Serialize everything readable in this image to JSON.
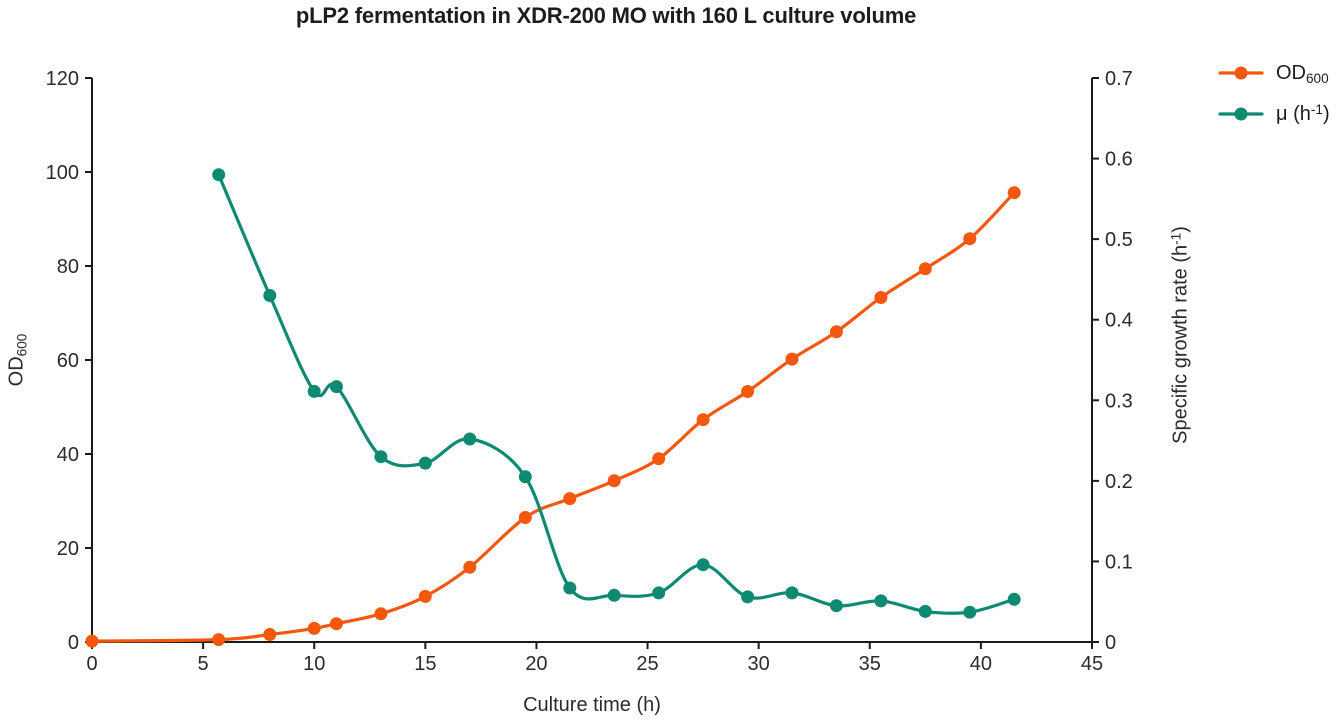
{
  "chart_data": {
    "type": "line",
    "title": "pLP2 fermentation in XDR-200 MO with 160 L culture volume",
    "xlabel": "Culture time (h)",
    "ylabel_left": {
      "main": "OD",
      "sub": "600"
    },
    "ylabel_right": {
      "main": "Specific growth rate (h",
      "sup": "-1",
      "post": ")"
    },
    "xlim": [
      0,
      45
    ],
    "ylim_left": [
      0,
      120
    ],
    "ylim_right": [
      0,
      0.7
    ],
    "xticks": [
      0,
      5,
      10,
      15,
      20,
      25,
      30,
      35,
      40,
      45
    ],
    "yticks_left": [
      0,
      20,
      40,
      60,
      80,
      100,
      120
    ],
    "yticks_right": [
      0,
      0.1,
      0.2,
      0.3,
      0.4,
      0.5,
      0.6,
      0.7
    ],
    "grid": false,
    "legend_position": "top-right-outside",
    "series": [
      {
        "id": "od600",
        "name": "OD600",
        "axis": "left",
        "color": "#f4580e",
        "x": [
          0,
          5.7,
          8,
          10,
          11,
          13,
          15,
          17,
          19.5,
          21.5,
          23.5,
          25.5,
          27.5,
          29.5,
          31.5,
          33.5,
          35.5,
          37.5,
          39.5,
          41.5
        ],
        "y": [
          0.2,
          0.5,
          1.6,
          2.9,
          3.9,
          6.0,
          9.7,
          15.9,
          26.5,
          30.5,
          34.3,
          39.0,
          47.3,
          53.3,
          60.2,
          66.0,
          73.3,
          79.4,
          85.8,
          95.6
        ]
      },
      {
        "id": "mu",
        "name": "mu (h-1)",
        "axis": "right",
        "color": "#0e8a73",
        "x": [
          5.7,
          8,
          10,
          11,
          13,
          15,
          17,
          19.5,
          21.5,
          23.5,
          25.5,
          27.5,
          29.5,
          31.5,
          33.5,
          35.5,
          37.5,
          39.5,
          41.5
        ],
        "y": [
          0.58,
          0.43,
          0.311,
          0.317,
          0.23,
          0.222,
          0.252,
          0.205,
          0.067,
          0.058,
          0.061,
          0.096,
          0.056,
          0.061,
          0.045,
          0.051,
          0.038,
          0.037,
          0.053
        ]
      }
    ]
  },
  "legend": {
    "items": [
      {
        "pre": "OD",
        "sub": "600",
        "post": "",
        "series": "od600"
      },
      {
        "pre": "μ (h",
        "sup": "-1",
        "post": ")",
        "series": "mu"
      }
    ]
  },
  "style": {
    "axis_color": "#1a1a1a",
    "tick_label_color": "#2b2b2b",
    "background": "#ffffff"
  }
}
